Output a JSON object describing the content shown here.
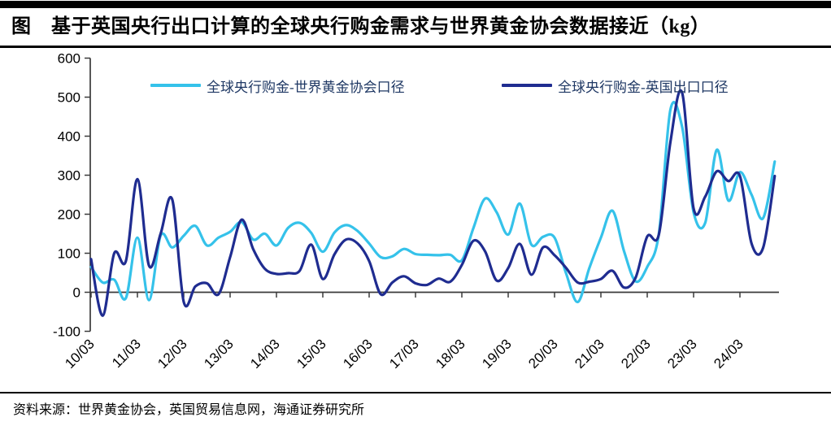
{
  "title": "图　基于英国央行出口计算的全球央行购金需求与世界黄金协会数据接近（kg）",
  "source": "资料来源：世界黄金协会，英国贸易信息网，海通证券研究所",
  "colors": {
    "wgc_line": "#35C2EA",
    "boe_line": "#1F2C90",
    "legend_text": "#1F3864",
    "axis": "#3a3a3a",
    "tick_label": "#000000"
  },
  "legend": [
    {
      "label": "全球央行购金-世界黄金协会口径",
      "series": "wgc"
    },
    {
      "label": "全球央行购金-英国出口口径",
      "series": "boe"
    }
  ],
  "chart_data": {
    "type": "line",
    "smoothing": true,
    "ylim": [
      -100,
      600
    ],
    "y_ticks": [
      600,
      500,
      400,
      300,
      200,
      100,
      0,
      -100
    ],
    "x_tick_labels": [
      "10/03",
      "11/03",
      "12/03",
      "13/03",
      "14/03",
      "15/03",
      "16/03",
      "17/03",
      "18/03",
      "19/03",
      "20/03",
      "21/03",
      "22/03",
      "23/03",
      "24/03"
    ],
    "x": [
      "10/03",
      "10/06",
      "10/09",
      "10/12",
      "11/03",
      "11/06",
      "11/09",
      "11/12",
      "12/03",
      "12/06",
      "12/09",
      "12/12",
      "13/03",
      "13/06",
      "13/09",
      "13/12",
      "14/03",
      "14/06",
      "14/09",
      "14/12",
      "15/03",
      "15/06",
      "15/09",
      "15/12",
      "16/03",
      "16/06",
      "16/09",
      "16/12",
      "17/03",
      "17/06",
      "17/09",
      "17/12",
      "18/03",
      "18/06",
      "18/09",
      "18/12",
      "19/03",
      "19/06",
      "19/09",
      "19/12",
      "20/03",
      "20/06",
      "20/09",
      "20/12",
      "21/03",
      "21/06",
      "21/09",
      "21/12",
      "22/03",
      "22/06",
      "22/09",
      "22/12",
      "23/03",
      "23/06",
      "23/09",
      "23/12",
      "24/03",
      "24/06",
      "24/09",
      "24/12"
    ],
    "series": [
      {
        "name": "全球央行购金-世界黄金协会口径",
        "color_key": "wgc_line",
        "values": [
          65,
          25,
          32,
          -15,
          140,
          -20,
          145,
          115,
          145,
          170,
          120,
          140,
          155,
          180,
          135,
          150,
          120,
          165,
          178,
          152,
          104,
          153,
          172,
          157,
          125,
          90,
          92,
          111,
          98,
          96,
          95,
          96,
          82,
          165,
          240,
          205,
          148,
          227,
          122,
          142,
          140,
          48,
          -25,
          62,
          140,
          209,
          105,
          28,
          65,
          150,
          468,
          425,
          205,
          178,
          365,
          235,
          308,
          250,
          190,
          335
        ]
      },
      {
        "name": "全球央行购金-英国出口口径",
        "color_key": "boe_line",
        "values": [
          85,
          -60,
          100,
          80,
          290,
          68,
          150,
          238,
          -25,
          15,
          23,
          -5,
          90,
          186,
          110,
          60,
          47,
          49,
          55,
          122,
          34,
          97,
          135,
          125,
          80,
          -5,
          25,
          41,
          23,
          19,
          35,
          27,
          70,
          132,
          105,
          30,
          62,
          124,
          45,
          115,
          95,
          62,
          25,
          27,
          34,
          55,
          12,
          38,
          143,
          148,
          385,
          512,
          215,
          245,
          310,
          285,
          298,
          125,
          114,
          298
        ]
      }
    ]
  }
}
